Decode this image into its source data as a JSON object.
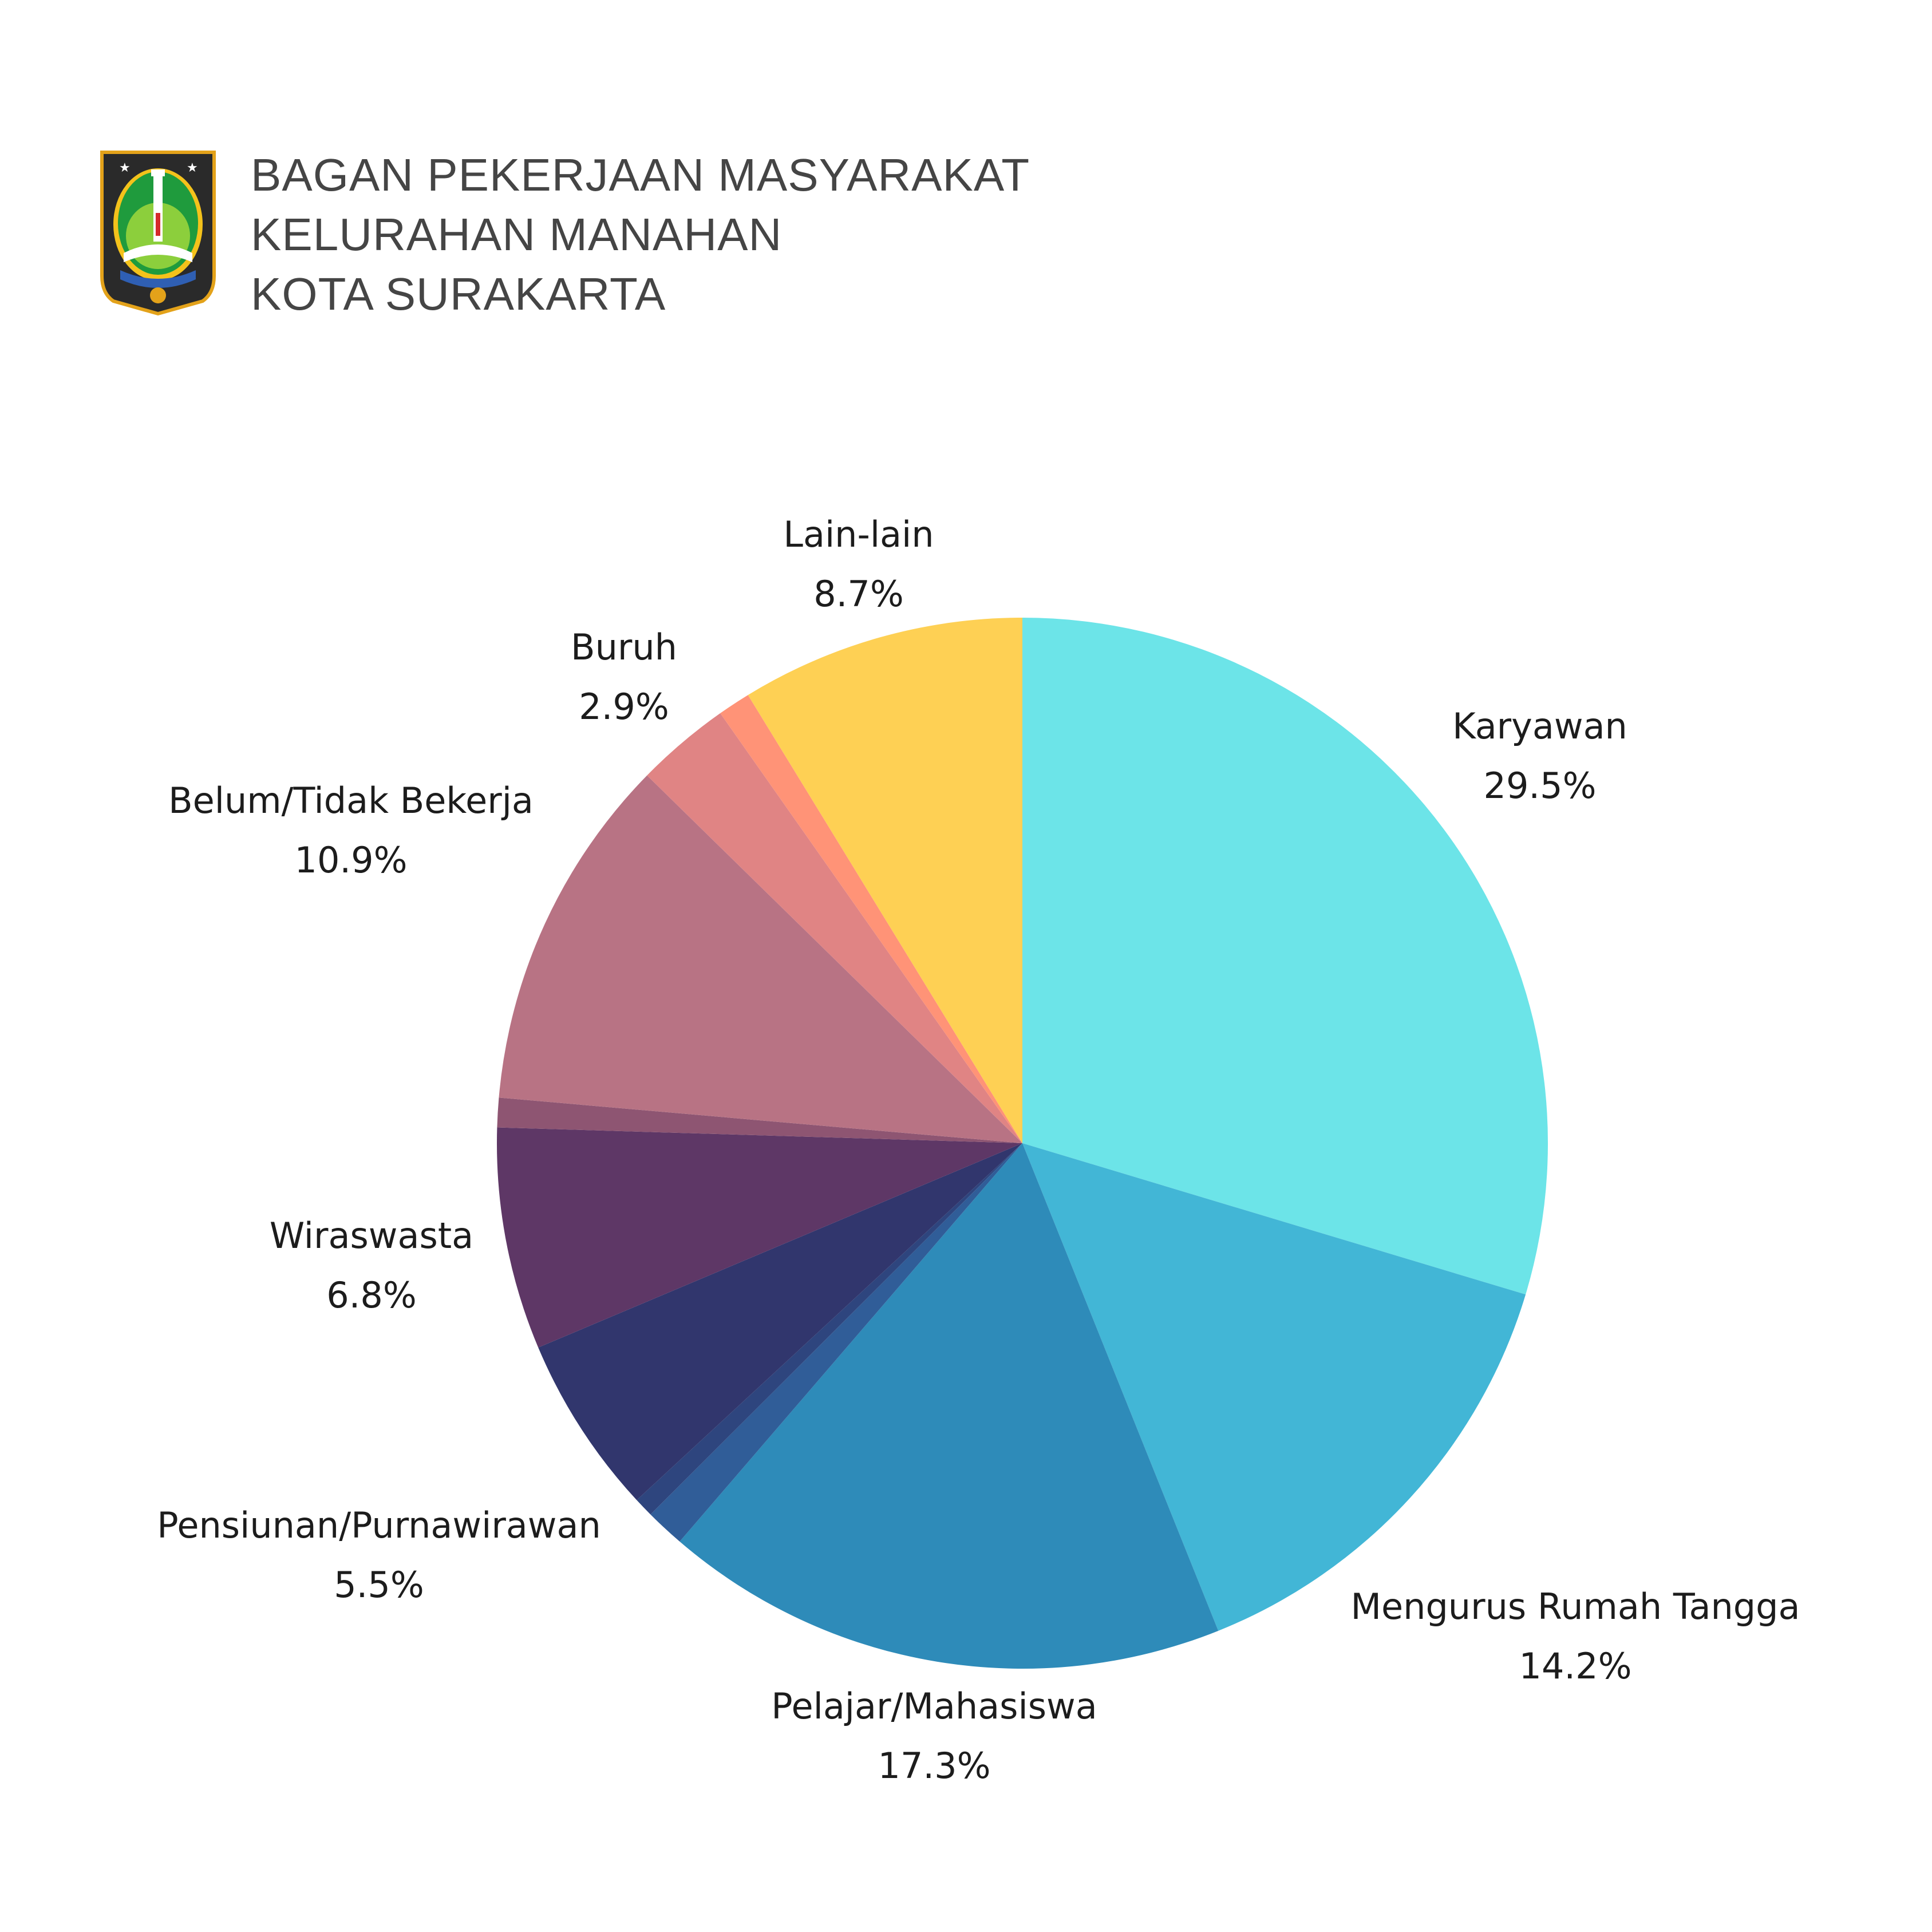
{
  "header": {
    "title_lines": [
      "BAGAN PEKERJAAN MASYARAKAT",
      "KELURAHAN MANAHAN",
      "KOTA SURAKARTA"
    ],
    "emblem": "kota-surakarta-coat-of-arms"
  },
  "chart_data": {
    "type": "pie",
    "title": "BAGAN PEKERJAAN MASYARAKAT KELURAHAN MANAHAN KOTA SURAKARTA",
    "start_angle": "12 o'clock",
    "direction": "clockwise",
    "slices": [
      {
        "name": "Karyawan",
        "value": 29.5,
        "value_label": "29.5%",
        "color": "#6ce4e8",
        "labeled": true
      },
      {
        "name": "Mengurus Rumah Tangga",
        "value": 14.2,
        "value_label": "14.2%",
        "color": "#42b6d6",
        "labeled": true
      },
      {
        "name": "Pelajar/Mahasiswa",
        "value": 17.3,
        "value_label": "17.3%",
        "color": "#2e8bb9",
        "labeled": true
      },
      {
        "name": "",
        "value": 1.2,
        "value_label": "",
        "color": "#305d98",
        "labeled": false
      },
      {
        "name": "",
        "value": 0.6,
        "value_label": "",
        "color": "#2e457e",
        "labeled": false
      },
      {
        "name": "Pensiunan/Purnawirawan",
        "value": 5.5,
        "value_label": "5.5%",
        "color": "#31366d",
        "labeled": true
      },
      {
        "name": "Wiraswasta",
        "value": 6.8,
        "value_label": "6.8%",
        "color": "#5e3766",
        "labeled": true
      },
      {
        "name": "",
        "value": 0.9,
        "value_label": "",
        "color": "#8e5572",
        "labeled": false
      },
      {
        "name": "Belum/Tidak Bekerja",
        "value": 10.9,
        "value_label": "10.9%",
        "color": "#b87384",
        "labeled": true
      },
      {
        "name": "Buruh",
        "value": 2.9,
        "value_label": "2.9%",
        "color": "#e08484",
        "labeled": true
      },
      {
        "name": "",
        "value": 1.0,
        "value_label": "",
        "color": "#ff9377",
        "labeled": false
      },
      {
        "name": "Lain-lain",
        "value": 8.7,
        "value_label": "8.7%",
        "color": "#fed054",
        "labeled": true
      }
    ]
  }
}
